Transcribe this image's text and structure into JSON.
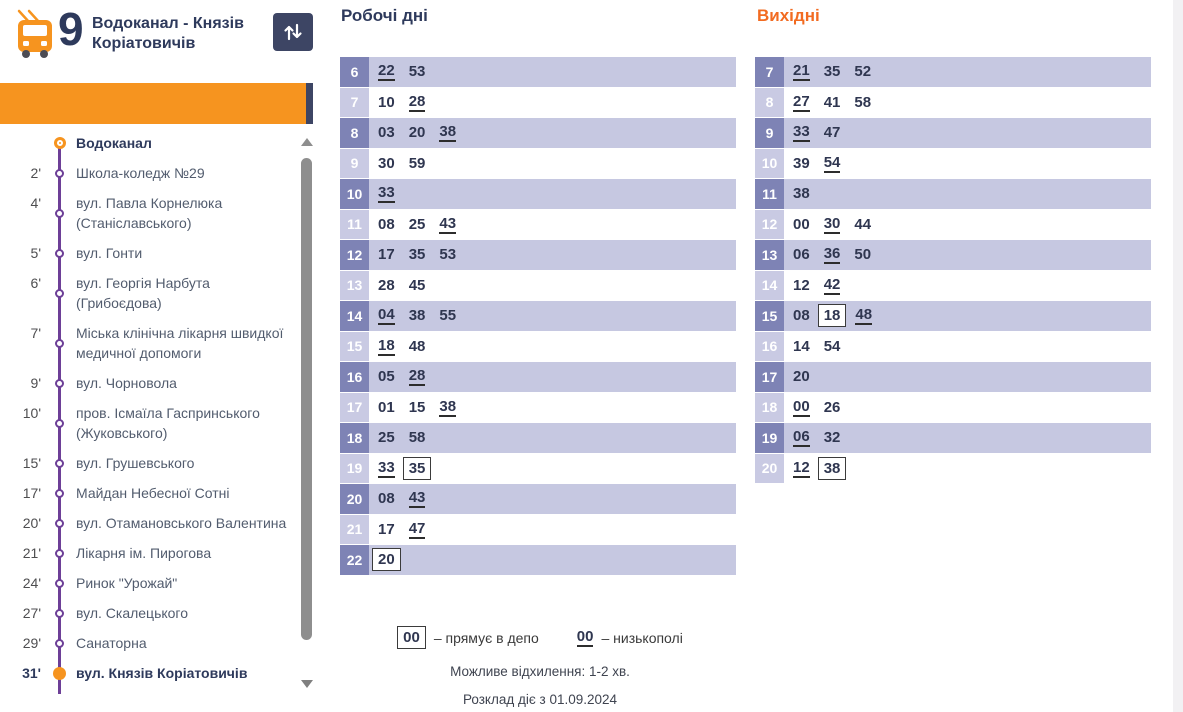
{
  "header": {
    "route_number": "9",
    "route_name": "Водоканал - Князів Коріатовичів",
    "vehicle_icon": "trolleybus-icon",
    "swap_icon": "swap-direction-arrows"
  },
  "colors": {
    "accent_orange": "#f6941f",
    "weekend_title_orange": "#f26b21",
    "navy": "#2e3a5c",
    "swap_button_navy": "#3d4564",
    "hour_cell_dark": "#7e83b5",
    "hour_cell_light": "#c9cae3",
    "row_stripe": "#c6c8e1",
    "route_line_purple": "#6d3f97"
  },
  "stops": [
    {
      "minutes": "",
      "name": "Водоканал",
      "type": "terminal-start"
    },
    {
      "minutes": "2'",
      "name": "Школа-коледж №29",
      "type": ""
    },
    {
      "minutes": "4'",
      "name": "вул. Павла Корнелюка (Станіславського)",
      "type": ""
    },
    {
      "minutes": "5'",
      "name": "вул. Гонти",
      "type": ""
    },
    {
      "minutes": "6'",
      "name": "вул. Георгія Нарбута (Грибоєдова)",
      "type": ""
    },
    {
      "minutes": "7'",
      "name": "Міська клінічна лікарня швидкої медичної допомоги",
      "type": ""
    },
    {
      "minutes": "9'",
      "name": "вул. Чорновола",
      "type": ""
    },
    {
      "minutes": "10'",
      "name": "пров. Ісмаїла Гаспринського (Жуковського)",
      "type": ""
    },
    {
      "minutes": "15'",
      "name": "вул. Грушевського",
      "type": ""
    },
    {
      "minutes": "17'",
      "name": "Майдан Небесної Сотні",
      "type": ""
    },
    {
      "minutes": "20'",
      "name": "вул. Отамановського Валентина",
      "type": ""
    },
    {
      "minutes": "21'",
      "name": "Лікарня ім. Пирогова",
      "type": ""
    },
    {
      "minutes": "24'",
      "name": "Ринок \"Урожай\"",
      "type": ""
    },
    {
      "minutes": "27'",
      "name": "вул. Скалецького",
      "type": ""
    },
    {
      "minutes": "29'",
      "name": "Санаторна",
      "type": ""
    },
    {
      "minutes": "31'",
      "name": "вул. Князів Коріатовичів",
      "type": "terminal-end"
    }
  ],
  "workdays": {
    "title": "Робочі дні",
    "rows": [
      {
        "hour": "6",
        "times": [
          {
            "t": "22",
            "mark": "lowfloor"
          },
          {
            "t": "53",
            "mark": "none"
          }
        ]
      },
      {
        "hour": "7",
        "times": [
          {
            "t": "10",
            "mark": "none"
          },
          {
            "t": "28",
            "mark": "lowfloor"
          }
        ]
      },
      {
        "hour": "8",
        "times": [
          {
            "t": "03",
            "mark": "none"
          },
          {
            "t": "20",
            "mark": "none"
          },
          {
            "t": "38",
            "mark": "lowfloor"
          }
        ]
      },
      {
        "hour": "9",
        "times": [
          {
            "t": "30",
            "mark": "none"
          },
          {
            "t": "59",
            "mark": "none"
          }
        ]
      },
      {
        "hour": "10",
        "times": [
          {
            "t": "33",
            "mark": "lowfloor"
          }
        ]
      },
      {
        "hour": "11",
        "times": [
          {
            "t": "08",
            "mark": "none"
          },
          {
            "t": "25",
            "mark": "none"
          },
          {
            "t": "43",
            "mark": "lowfloor"
          }
        ]
      },
      {
        "hour": "12",
        "times": [
          {
            "t": "17",
            "mark": "none"
          },
          {
            "t": "35",
            "mark": "none"
          },
          {
            "t": "53",
            "mark": "none"
          }
        ]
      },
      {
        "hour": "13",
        "times": [
          {
            "t": "28",
            "mark": "none"
          },
          {
            "t": "45",
            "mark": "none"
          }
        ]
      },
      {
        "hour": "14",
        "times": [
          {
            "t": "04",
            "mark": "lowfloor"
          },
          {
            "t": "38",
            "mark": "none"
          },
          {
            "t": "55",
            "mark": "none"
          }
        ]
      },
      {
        "hour": "15",
        "times": [
          {
            "t": "18",
            "mark": "lowfloor"
          },
          {
            "t": "48",
            "mark": "none"
          }
        ]
      },
      {
        "hour": "16",
        "times": [
          {
            "t": "05",
            "mark": "none"
          },
          {
            "t": "28",
            "mark": "lowfloor"
          }
        ]
      },
      {
        "hour": "17",
        "times": [
          {
            "t": "01",
            "mark": "none"
          },
          {
            "t": "15",
            "mark": "none"
          },
          {
            "t": "38",
            "mark": "lowfloor"
          }
        ]
      },
      {
        "hour": "18",
        "times": [
          {
            "t": "25",
            "mark": "none"
          },
          {
            "t": "58",
            "mark": "none"
          }
        ]
      },
      {
        "hour": "19",
        "times": [
          {
            "t": "33",
            "mark": "lowfloor"
          },
          {
            "t": "35",
            "mark": "depot"
          }
        ]
      },
      {
        "hour": "20",
        "times": [
          {
            "t": "08",
            "mark": "none"
          },
          {
            "t": "43",
            "mark": "lowfloor"
          }
        ]
      },
      {
        "hour": "21",
        "times": [
          {
            "t": "17",
            "mark": "none"
          },
          {
            "t": "47",
            "mark": "lowfloor"
          }
        ]
      },
      {
        "hour": "22",
        "times": [
          {
            "t": "20",
            "mark": "depot"
          }
        ]
      }
    ]
  },
  "weekends": {
    "title": "Вихідні",
    "rows": [
      {
        "hour": "7",
        "times": [
          {
            "t": "21",
            "mark": "lowfloor"
          },
          {
            "t": "35",
            "mark": "none"
          },
          {
            "t": "52",
            "mark": "none"
          }
        ]
      },
      {
        "hour": "8",
        "times": [
          {
            "t": "27",
            "mark": "lowfloor"
          },
          {
            "t": "41",
            "mark": "none"
          },
          {
            "t": "58",
            "mark": "none"
          }
        ]
      },
      {
        "hour": "9",
        "times": [
          {
            "t": "33",
            "mark": "lowfloor"
          },
          {
            "t": "47",
            "mark": "none"
          }
        ]
      },
      {
        "hour": "10",
        "times": [
          {
            "t": "39",
            "mark": "none"
          },
          {
            "t": "54",
            "mark": "lowfloor"
          }
        ]
      },
      {
        "hour": "11",
        "times": [
          {
            "t": "38",
            "mark": "none"
          }
        ]
      },
      {
        "hour": "12",
        "times": [
          {
            "t": "00",
            "mark": "none"
          },
          {
            "t": "30",
            "mark": "lowfloor"
          },
          {
            "t": "44",
            "mark": "none"
          }
        ]
      },
      {
        "hour": "13",
        "times": [
          {
            "t": "06",
            "mark": "none"
          },
          {
            "t": "36",
            "mark": "lowfloor"
          },
          {
            "t": "50",
            "mark": "none"
          }
        ]
      },
      {
        "hour": "14",
        "times": [
          {
            "t": "12",
            "mark": "none"
          },
          {
            "t": "42",
            "mark": "lowfloor"
          }
        ]
      },
      {
        "hour": "15",
        "times": [
          {
            "t": "08",
            "mark": "none"
          },
          {
            "t": "18",
            "mark": "depot"
          },
          {
            "t": "48",
            "mark": "lowfloor"
          }
        ]
      },
      {
        "hour": "16",
        "times": [
          {
            "t": "14",
            "mark": "none"
          },
          {
            "t": "54",
            "mark": "none"
          }
        ]
      },
      {
        "hour": "17",
        "times": [
          {
            "t": "20",
            "mark": "none"
          }
        ]
      },
      {
        "hour": "18",
        "times": [
          {
            "t": "00",
            "mark": "lowfloor"
          },
          {
            "t": "26",
            "mark": "none"
          }
        ]
      },
      {
        "hour": "19",
        "times": [
          {
            "t": "06",
            "mark": "lowfloor"
          },
          {
            "t": "32",
            "mark": "none"
          }
        ]
      },
      {
        "hour": "20",
        "times": [
          {
            "t": "12",
            "mark": "lowfloor"
          },
          {
            "t": "38",
            "mark": "depot"
          }
        ]
      }
    ]
  },
  "legend": {
    "depot_sample": "00",
    "depot_label": "– прямує в депо",
    "lowfloor_sample": "00",
    "lowfloor_label": "– низькополі",
    "deviation_note": "Можливе відхилення: 1-2 хв.",
    "valid_note": "Розклад діє з 01.09.2024"
  }
}
